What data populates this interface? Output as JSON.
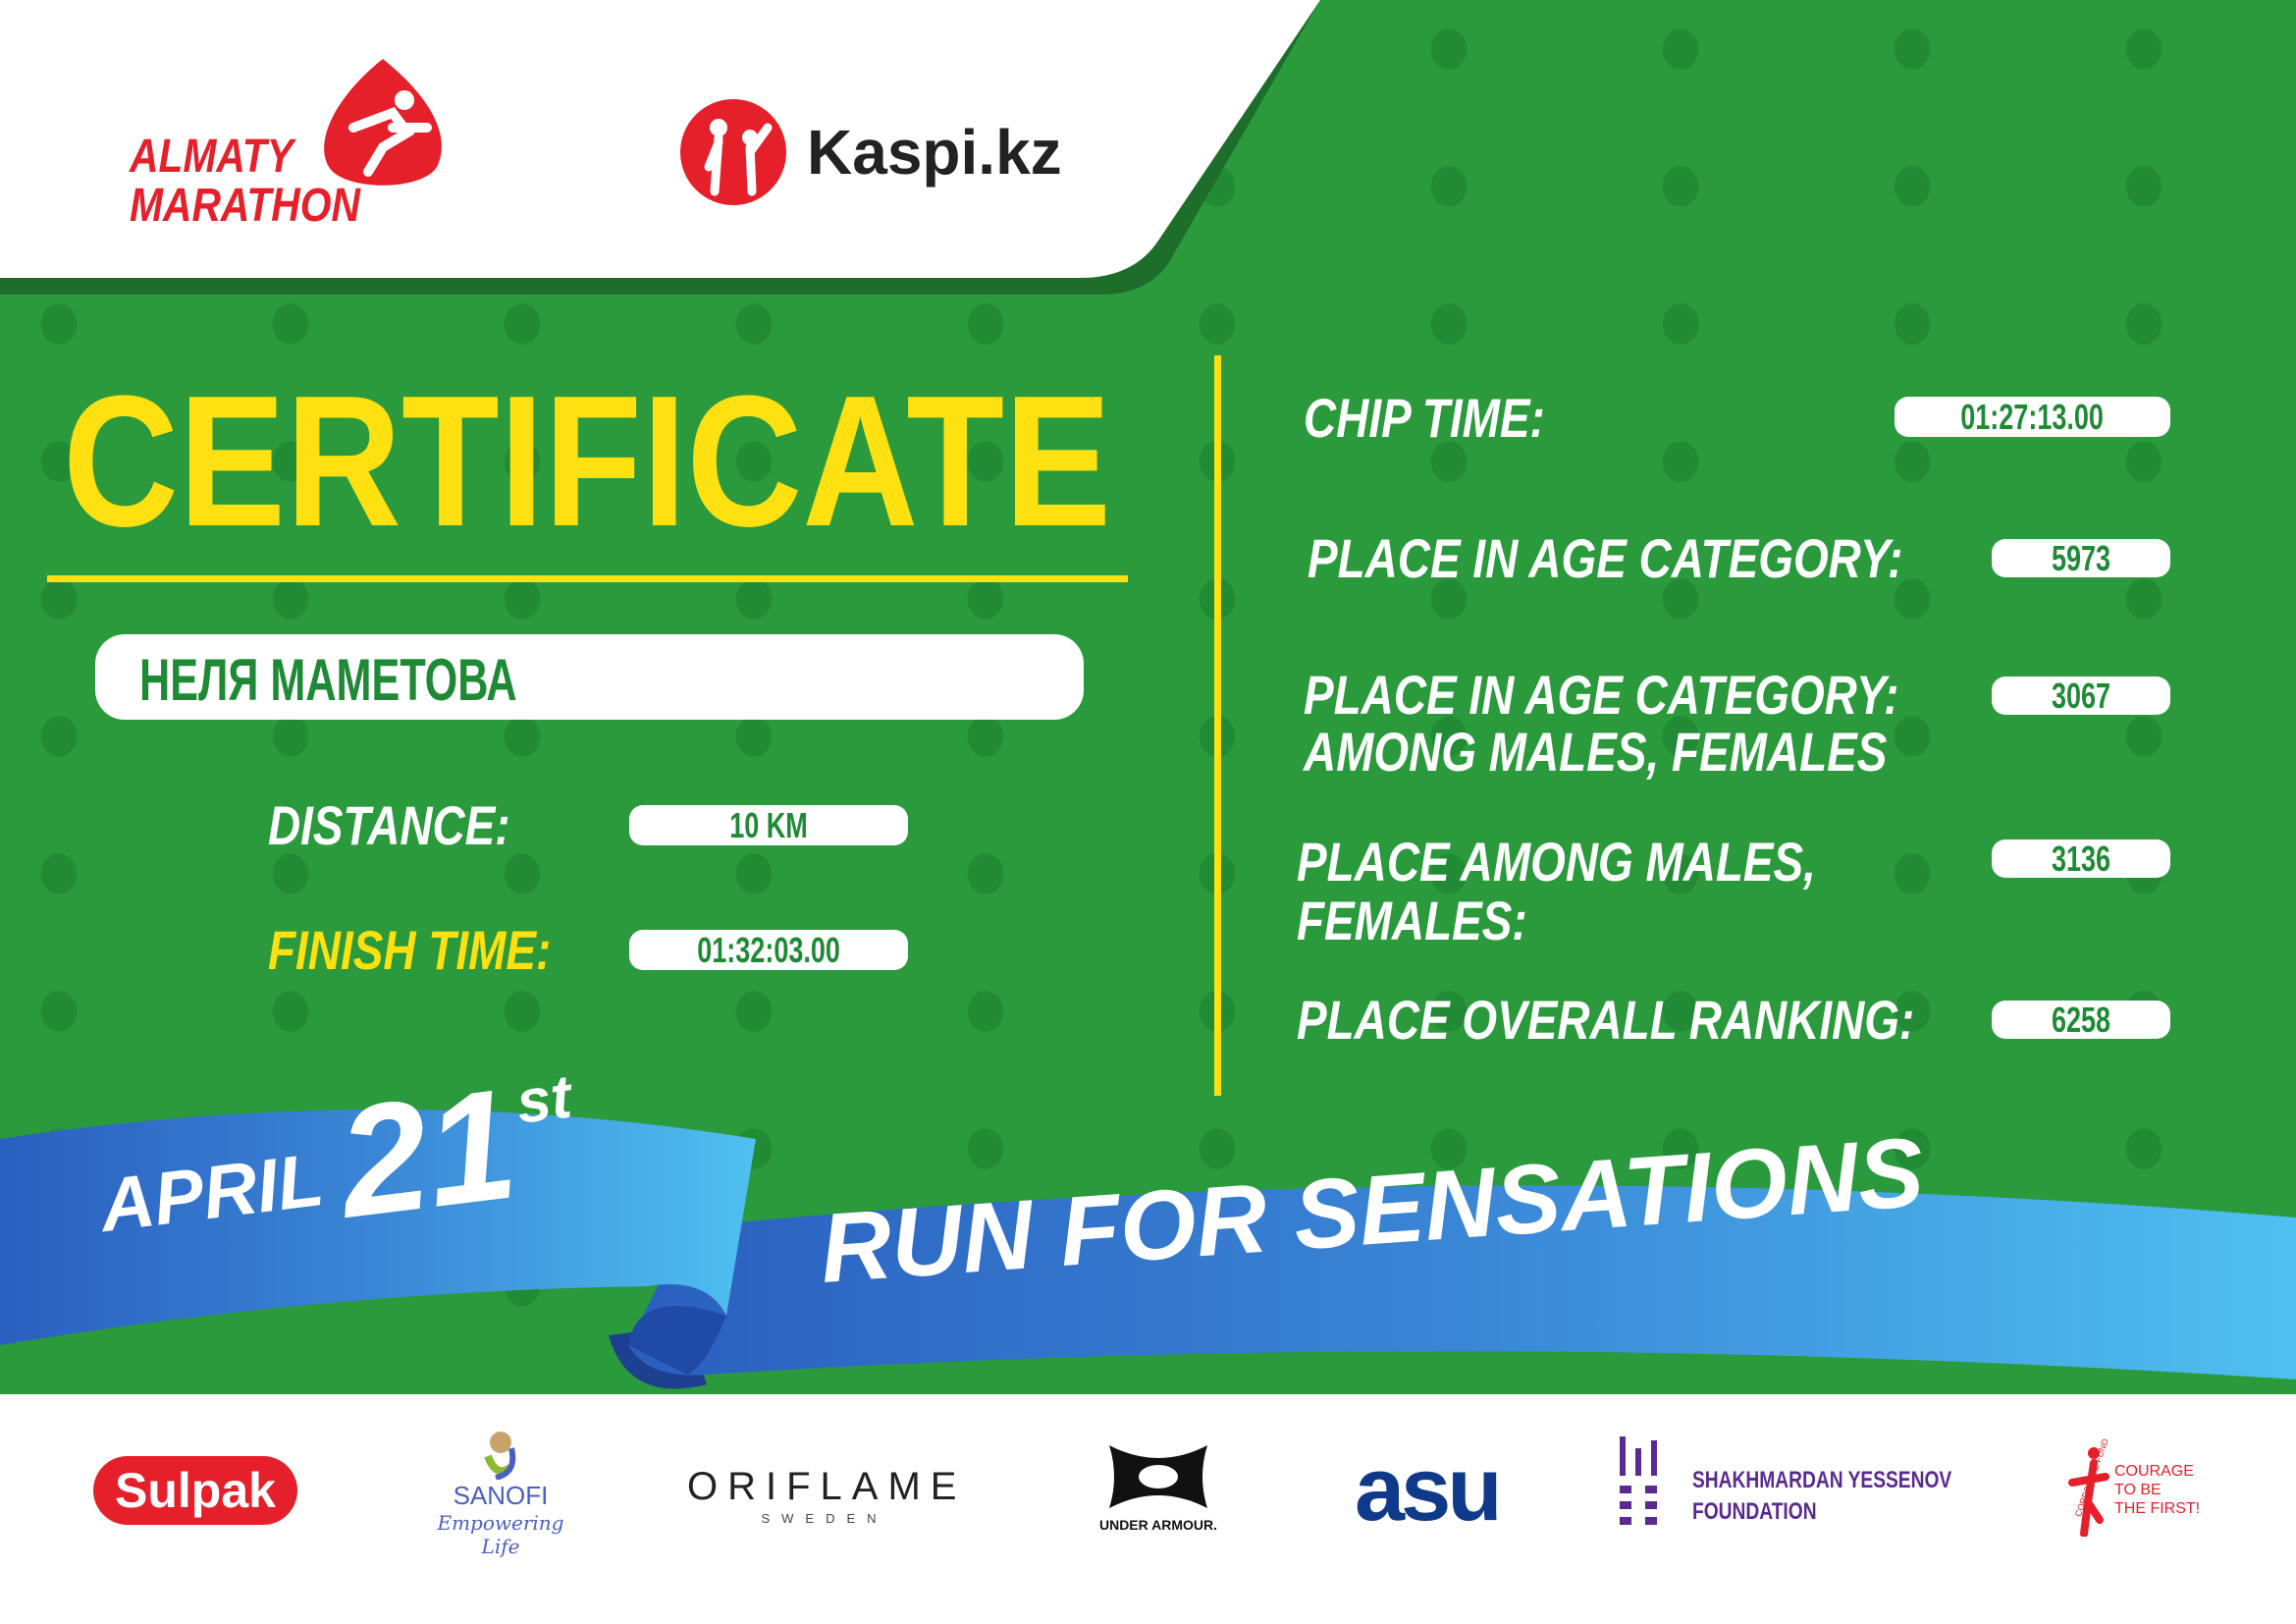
{
  "header": {
    "event_logo_line1": "ALMATY",
    "event_logo_line2": "MARATHON",
    "sponsor_name": "Kaspi.kz"
  },
  "certificate": {
    "title": "CERTIFICATE",
    "participant_name": "НЕЛЯ МАМЕТОВА",
    "distance_label": "DISTANCE:",
    "distance_value": "10 KM",
    "finish_time_label": "FINISH TIME:",
    "finish_time_value": "01:32:03.00"
  },
  "results": {
    "chip_time_label": "CHIP TIME:",
    "chip_time_value": "01:27:13.00",
    "age_place_label": "PLACE IN AGE CATEGORY:",
    "age_place_value": "5973",
    "age_gender_place_label_1": "PLACE IN AGE CATEGORY:",
    "age_gender_place_label_2": "AMONG MALES, FEMALES",
    "age_gender_place_value": "3067",
    "gender_place_label_1": "PLACE AMONG MALES,",
    "gender_place_label_2": "FEMALES:",
    "gender_place_value": "3136",
    "overall_label": "PLACE OVERALL RANKING:",
    "overall_value": "6258"
  },
  "ribbon": {
    "month": "APRIL",
    "day": "21",
    "suffix": "st",
    "slogan": "RUN FOR SENSATIONS"
  },
  "partners": {
    "sulpak": "Sulpak",
    "sanofi": "SANOFI",
    "sanofi_tagline": "Empowering Life",
    "oriflame": "ORIFLAME",
    "oriflame_sub": "SWEDEN",
    "under_armour": "UNDER ARMOUR.",
    "asu": "asu",
    "yessenov_1": "SHAKHMARDAN YESSENOV",
    "yessenov_2": "FOUNDATION",
    "courage_fund_arc": "CORPORATE FUND",
    "courage_1": "COURAGE",
    "courage_2": "TO BE",
    "courage_3": "THE FIRST!"
  },
  "colors": {
    "green": "#2a9a3c",
    "yellow": "#ffe010",
    "red": "#e5202a",
    "blue": "#3a7fd0"
  }
}
